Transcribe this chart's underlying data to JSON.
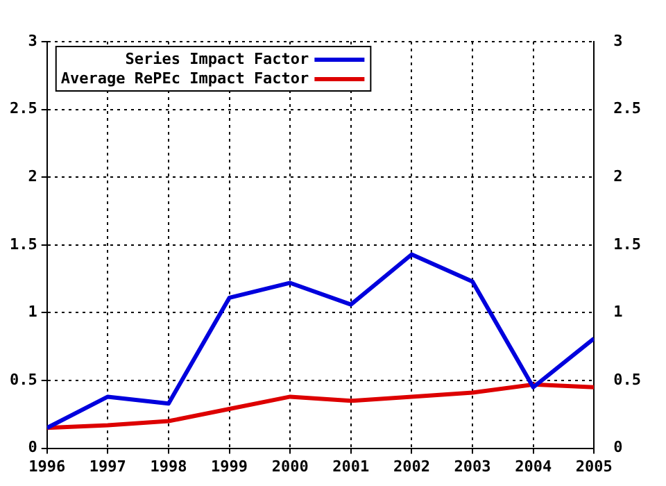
{
  "chart_data": {
    "type": "line",
    "x": [
      1996,
      1997,
      1998,
      1999,
      2000,
      2001,
      2002,
      2003,
      2004,
      2005
    ],
    "series": [
      {
        "name": "Series Impact Factor",
        "color": "#0000dd",
        "values": [
          0.15,
          0.38,
          0.33,
          1.11,
          1.22,
          1.06,
          1.43,
          1.23,
          0.45,
          0.81
        ]
      },
      {
        "name": "Average RePEc Impact Factor",
        "color": "#dd0000",
        "values": [
          0.15,
          0.17,
          0.2,
          0.29,
          0.38,
          0.35,
          0.38,
          0.41,
          0.47,
          0.45
        ]
      }
    ],
    "xlim": [
      1996,
      2005
    ],
    "xticks": [
      1996,
      1997,
      1998,
      1999,
      2000,
      2001,
      2002,
      2003,
      2004,
      2005
    ],
    "ylim": [
      0,
      3
    ],
    "yticks": [
      0,
      0.5,
      1,
      1.5,
      2,
      2.5,
      3
    ],
    "y2lim": [
      0,
      3
    ],
    "y2ticks": [
      0,
      0.5,
      1,
      1.5,
      2,
      2.5,
      3
    ],
    "grid": true,
    "legend": "top left",
    "marker": "none",
    "line_style": "solid"
  }
}
